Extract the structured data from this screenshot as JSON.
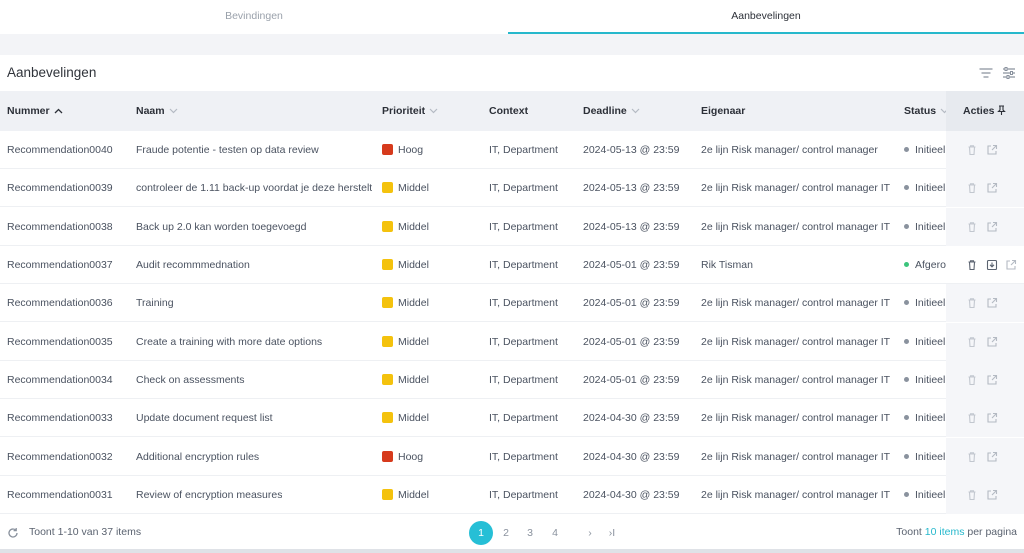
{
  "tabs": [
    {
      "label": "Bevindingen"
    },
    {
      "label": "Aanbevelingen"
    }
  ],
  "title": "Aanbevelingen",
  "columns": {
    "nummer": "Nummer",
    "naam": "Naam",
    "prioriteit": "Prioriteit",
    "context": "Context",
    "deadline": "Deadline",
    "eigenaar": "Eigenaar",
    "status": "Status",
    "acties": "Acties"
  },
  "colors": {
    "accent": "#26bfd6",
    "priority_hoog": "#d63a1c",
    "priority_middel": "#f4c20d",
    "status_initieel": "#8a929e",
    "status_afgerond": "#3cc47c"
  },
  "rows": [
    {
      "nummer": "Recommendation0040",
      "naam": "Fraude potentie - testen op data review",
      "prioriteit": "Hoog",
      "context": "IT, Department",
      "deadline": "2024-05-13 @ 23:59",
      "eigenaar": "2e lijn Risk manager/ control manager",
      "status": "Initieel"
    },
    {
      "nummer": "Recommendation0039",
      "naam": "controleer de 1.11 back-up voordat je deze herstelt",
      "prioriteit": "Middel",
      "context": "IT, Department",
      "deadline": "2024-05-13 @ 23:59",
      "eigenaar": "2e lijn Risk manager/ control manager IT",
      "status": "Initieel"
    },
    {
      "nummer": "Recommendation0038",
      "naam": "Back up 2.0 kan worden toegevoegd",
      "prioriteit": "Middel",
      "context": "IT, Department",
      "deadline": "2024-05-13 @ 23:59",
      "eigenaar": "2e lijn Risk manager/ control manager IT",
      "status": "Initieel"
    },
    {
      "nummer": "Recommendation0037",
      "naam": "Audit recommmednation",
      "prioriteit": "Middel",
      "context": "IT, Department",
      "deadline": "2024-05-01 @ 23:59",
      "eigenaar": "Rik Tisman",
      "status": "Afgerond"
    },
    {
      "nummer": "Recommendation0036",
      "naam": "Training",
      "prioriteit": "Middel",
      "context": "IT, Department",
      "deadline": "2024-05-01 @ 23:59",
      "eigenaar": "2e lijn Risk manager/ control manager IT",
      "status": "Initieel"
    },
    {
      "nummer": "Recommendation0035",
      "naam": "Create a training with more date options",
      "prioriteit": "Middel",
      "context": "IT, Department",
      "deadline": "2024-05-01 @ 23:59",
      "eigenaar": "2e lijn Risk manager/ control manager IT",
      "status": "Initieel"
    },
    {
      "nummer": "Recommendation0034",
      "naam": "Check on assessments",
      "prioriteit": "Middel",
      "context": "IT, Department",
      "deadline": "2024-05-01 @ 23:59",
      "eigenaar": "2e lijn Risk manager/ control manager IT",
      "status": "Initieel"
    },
    {
      "nummer": "Recommendation0033",
      "naam": "Update document request list",
      "prioriteit": "Middel",
      "context": "IT, Department",
      "deadline": "2024-04-30 @ 23:59",
      "eigenaar": "2e lijn Risk manager/ control manager IT",
      "status": "Initieel"
    },
    {
      "nummer": "Recommendation0032",
      "naam": "Additional encryption rules",
      "prioriteit": "Hoog",
      "context": "IT, Department",
      "deadline": "2024-04-30 @ 23:59",
      "eigenaar": "2e lijn Risk manager/ control manager IT",
      "status": "Initieel"
    },
    {
      "nummer": "Recommendation0031",
      "naam": "Review of encryption measures",
      "prioriteit": "Middel",
      "context": "IT, Department",
      "deadline": "2024-04-30 @ 23:59",
      "eigenaar": "2e lijn Risk manager/ control manager IT",
      "status": "Initieel"
    }
  ],
  "footer": {
    "count_text": "Toont 1-10 van 37 items",
    "pages": [
      "1",
      "2",
      "3",
      "4"
    ],
    "current_page": "1",
    "next_label": "›",
    "last_label": "›I",
    "perpage_prefix": "Toont ",
    "perpage_link": "10 items",
    "perpage_suffix": " per pagina"
  }
}
